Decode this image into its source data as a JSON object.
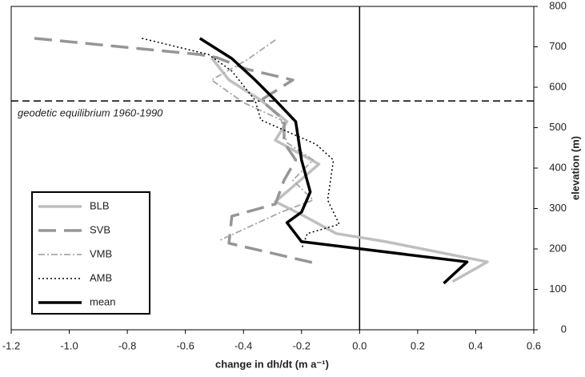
{
  "chart_data": {
    "type": "line",
    "xlabel": "change in dh/dt (m a⁻¹)",
    "ylabel": "elevation (m)",
    "annotation": "geodetic equilibrium 1960-1990",
    "equilibrium_line": 566,
    "xlim": [
      -1.2,
      0.6
    ],
    "xticks": [
      {
        "value": -1.2,
        "label": "-1.2"
      },
      {
        "value": -1.0,
        "label": "-1.0"
      },
      {
        "value": -0.8,
        "label": "-0.8"
      },
      {
        "value": -0.6,
        "label": "-0.6"
      },
      {
        "value": -0.4,
        "label": "-0.4"
      },
      {
        "value": -0.2,
        "label": "-0.2"
      },
      {
        "value": 0.0,
        "label": "0.0"
      },
      0.2,
      0.4,
      0.6
    ],
    "ylim": [
      0,
      800
    ],
    "yticks": [
      0,
      100,
      200,
      300,
      400,
      500,
      600,
      700,
      800
    ],
    "series": [
      {
        "name": "BLB",
        "color": "#bfbfbf",
        "style": "solid",
        "x": [
          -0.51,
          -0.45,
          -0.34,
          -0.25,
          -0.29,
          -0.14,
          -0.22,
          -0.29,
          -0.19,
          -0.08,
          0.09,
          0.44,
          0.32
        ],
        "values": [
          673,
          618,
          568,
          515,
          469,
          410,
          360,
          317,
          281,
          238,
          218,
          168,
          119
        ]
      },
      {
        "name": "SVB",
        "color": "#969696",
        "style": "dashed",
        "x": [
          -1.12,
          -0.55,
          -0.49,
          -0.39,
          -0.23,
          -0.34,
          -0.26,
          -0.26,
          -0.22,
          -0.26,
          -0.29,
          -0.44,
          -0.45,
          -0.16
        ],
        "values": [
          721,
          681,
          673,
          645,
          618,
          568,
          519,
          463,
          420,
          370,
          311,
          281,
          214,
          166
        ]
      },
      {
        "name": "VMB",
        "color": "#a6a6a6",
        "style": "dashdot",
        "x": [
          -0.29,
          -0.39,
          -0.51,
          -0.4,
          -0.27,
          -0.25,
          -0.16,
          -0.23,
          -0.16,
          -0.27,
          -0.48
        ],
        "values": [
          717,
          667,
          618,
          562,
          519,
          463,
          420,
          370,
          321,
          291,
          222
        ]
      },
      {
        "name": "AMB",
        "color": "#000000",
        "style": "dotted",
        "x": [
          -0.75,
          -0.52,
          -0.44,
          -0.36,
          -0.34,
          -0.15,
          -0.09,
          -0.11,
          -0.07,
          -0.18,
          -0.2
        ],
        "values": [
          721,
          681,
          640,
          568,
          519,
          459,
          420,
          321,
          261,
          238,
          200
        ]
      },
      {
        "name": "mean",
        "color": "#000000",
        "style": "solid",
        "x": [
          -0.55,
          -0.44,
          -0.36,
          -0.29,
          -0.22,
          -0.2,
          -0.17,
          -0.2,
          -0.25,
          -0.2,
          0.37,
          0.29
        ],
        "values": [
          721,
          671,
          618,
          568,
          515,
          420,
          341,
          291,
          265,
          218,
          168,
          115
        ]
      }
    ]
  }
}
